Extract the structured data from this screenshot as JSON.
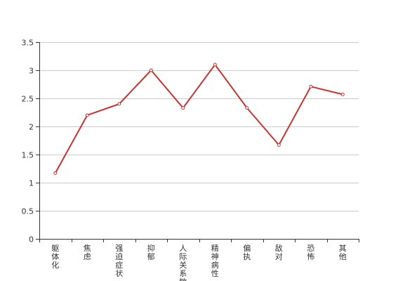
{
  "chart_data": {
    "type": "line",
    "categories": [
      "躯体化",
      "焦虑",
      "强迫症状",
      "抑郁",
      "人际关系敏感",
      "精神病性",
      "偏执",
      "敌对",
      "恐怖",
      "其他"
    ],
    "series": [
      {
        "values": [
          1.17,
          2.2,
          2.4,
          3.0,
          2.33,
          3.1,
          2.33,
          1.67,
          2.71,
          2.57
        ]
      }
    ],
    "yticks": [
      "0",
      "0.5",
      "1",
      "1.5",
      "2",
      "2.5",
      "3",
      "3.5"
    ],
    "ylim": [
      0,
      3.5
    ],
    "grid": true,
    "legend": "none",
    "colors": {
      "line": "#c23531",
      "grid": "#cccccc",
      "axis": "#333333"
    }
  }
}
